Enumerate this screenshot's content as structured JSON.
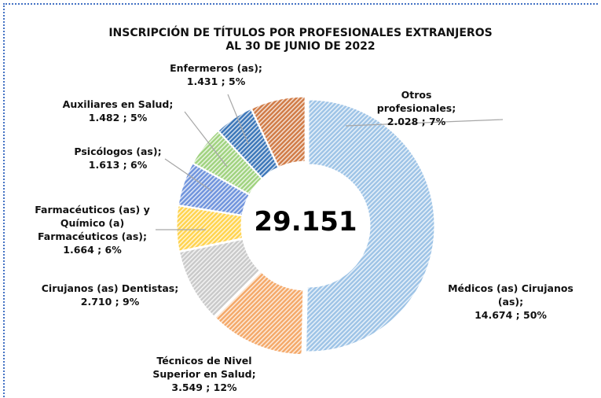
{
  "chart_data": {
    "type": "donut",
    "title": [
      "INSCRIPCIÓN DE TÍTULOS POR PROFESIONALES EXTRANJEROS",
      "AL 30 DE JUNIO DE 2022"
    ],
    "center_text": "29.151",
    "categories": [
      "Médicos (as) Cirujanos (as);",
      "Técnicos de Nivel Superior en Salud;",
      "Cirujanos (as) Dentistas;",
      "Farmacéuticos (as) y Químico (a) Farmacéuticos (as);",
      "Psicólogos (as);",
      "Auxiliares en Salud;",
      "Enfermeros (as);",
      "Otros profesionales;"
    ],
    "values": [
      14674,
      3549,
      2710,
      1664,
      1613,
      1482,
      1431,
      2028
    ],
    "value_labels": [
      "14.674 ; 50%",
      "3.549 ; 12%",
      "2.710 ; 9%",
      "1.664 ; 6%",
      "1.613 ; 6%",
      "1.482 ; 5%",
      "1.431 ; 5%",
      "2.028 ; 7%"
    ],
    "colors": [
      "#9dc3e6",
      "#f4a868",
      "#c9c9c9",
      "#ffd34d",
      "#6f93dc",
      "#9fd27e",
      "#3b76b8",
      "#d07a45"
    ]
  }
}
